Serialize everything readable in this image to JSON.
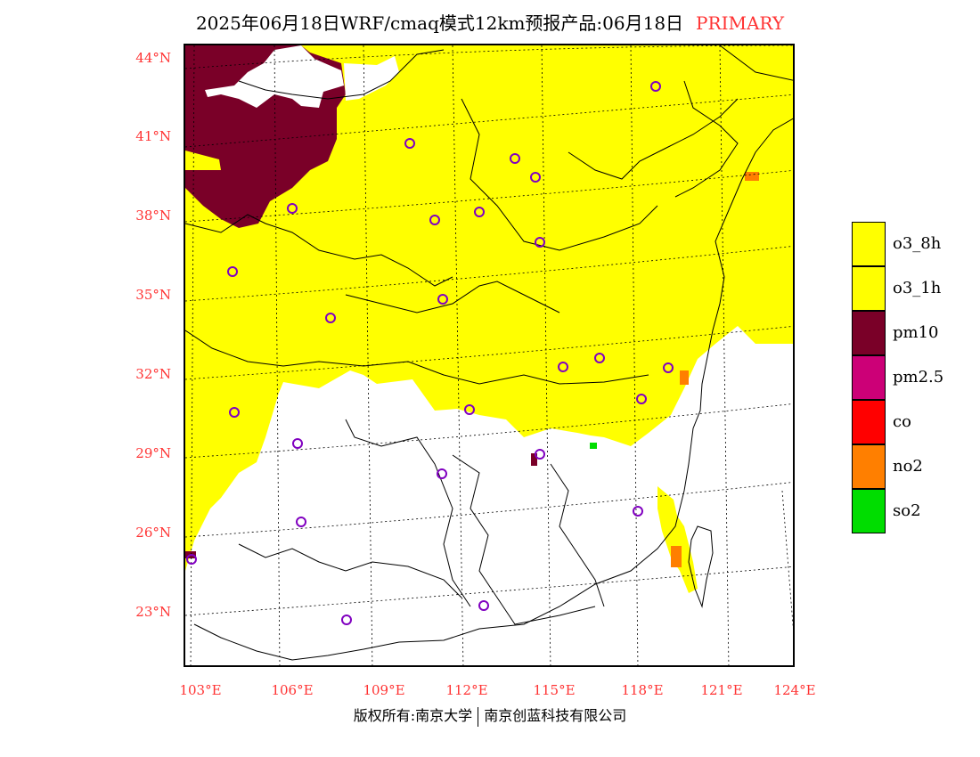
{
  "header": {
    "title": "2025年06月18日WRF/cmaq模式12km预报产品:06月18日",
    "status": "PRIMARY",
    "status_color": "#ff3333"
  },
  "map": {
    "lat_labels": [
      "44°N",
      "41°N",
      "38°N",
      "35°N",
      "32°N",
      "29°N",
      "26°N",
      "23°N"
    ],
    "lon_labels": [
      "103°E",
      "106°E",
      "109°E",
      "112°E",
      "115°E",
      "118°E",
      "121°E",
      "124°E"
    ],
    "label_color": "#ff3333"
  },
  "legend": {
    "items": [
      {
        "label": "o3_8h",
        "color": "#ffff00"
      },
      {
        "label": "o3_1h",
        "color": "#ffff00"
      },
      {
        "label": "pm10",
        "color": "#7a0028"
      },
      {
        "label": "pm2.5",
        "color": "#cc0077"
      },
      {
        "label": "co",
        "color": "#ff0000"
      },
      {
        "label": "no2",
        "color": "#ff7f00"
      },
      {
        "label": "so2",
        "color": "#00dd00"
      }
    ]
  },
  "footer": {
    "copyright_left": "版权所有:南京大学",
    "copyright_right": "南京创蓝科技有限公司"
  },
  "colors": {
    "o3": "#ffff00",
    "pm10": "#7a0028",
    "no2": "#ff7f00",
    "so2": "#00dd00",
    "station_marker": "#8000c0"
  }
}
